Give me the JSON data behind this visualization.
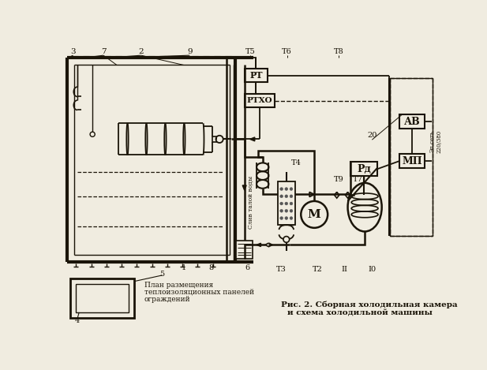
{
  "bg_color": "#f0ece0",
  "line_color": "#1a1408",
  "title_line1": "Рис. 2. Сборная холодильная камера",
  "title_line2": "и схема холодильной машины",
  "cap1": "План размещения",
  "cap2": "теплоизоляционных панелей",
  "cap3": "ограждений",
  "drain_label": "Слив талой воды",
  "elset": "Эл.сеть\n220/380"
}
